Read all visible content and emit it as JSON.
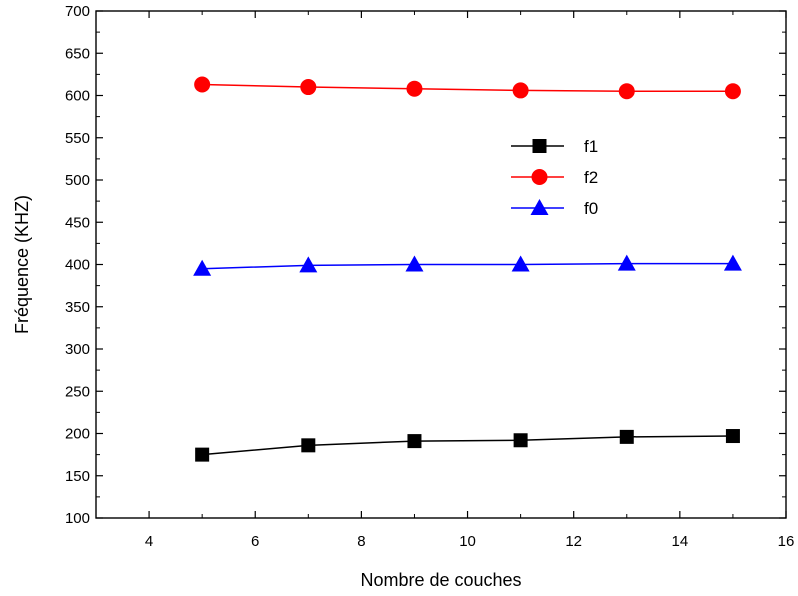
{
  "chart_data": {
    "type": "line",
    "title": "",
    "xlabel": "Nombre de couches",
    "ylabel": "Fréquence (KHZ)",
    "xlim": [
      3,
      16
    ],
    "ylim": [
      100,
      700
    ],
    "x_ticks": [
      4,
      6,
      8,
      10,
      12,
      14,
      16
    ],
    "y_ticks": [
      100,
      150,
      200,
      250,
      300,
      350,
      400,
      450,
      500,
      550,
      600,
      650,
      700
    ],
    "grid": false,
    "legend_position": "right",
    "x": [
      5,
      7,
      9,
      11,
      13,
      15
    ],
    "series": [
      {
        "name": "f1",
        "color": "#000000",
        "marker": "square",
        "values": [
          175,
          186,
          191,
          192,
          196,
          197
        ]
      },
      {
        "name": "f2",
        "color": "#ff0000",
        "marker": "circle",
        "values": [
          613,
          610,
          608,
          606,
          605,
          605
        ]
      },
      {
        "name": "f0",
        "color": "#0000ff",
        "marker": "triangle",
        "values": [
          395,
          399,
          400,
          400,
          401,
          401
        ]
      }
    ]
  }
}
